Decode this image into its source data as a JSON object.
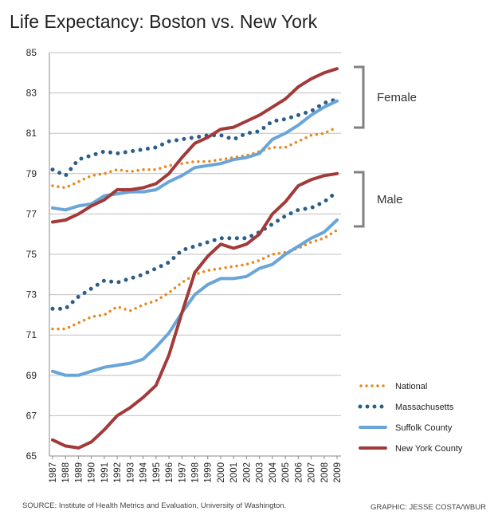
{
  "title": "Life Expectancy: Boston vs. New York",
  "source": "SOURCE: Institute of Health Metrics and Evaluation, University of Washington.",
  "credit": "GRAPHIC: JESSE COSTA/WBUR",
  "colors": {
    "National": "#e68a1f",
    "Massachusetts": "#2c5d8a",
    "Suffolk County": "#6aa5d8",
    "New York County": "#a33a3a",
    "grid": "#bfbfbf",
    "bracket": "#808080"
  },
  "chart_data": {
    "type": "line",
    "x": [
      1987,
      1988,
      1989,
      1990,
      1991,
      1992,
      1993,
      1994,
      1995,
      1996,
      1997,
      1998,
      1999,
      2000,
      2001,
      2002,
      2003,
      2004,
      2005,
      2006,
      2007,
      2008,
      2009
    ],
    "ylim": [
      65,
      85
    ],
    "yticks": [
      65,
      67,
      69,
      71,
      73,
      75,
      77,
      79,
      81,
      83,
      85
    ],
    "grid": true,
    "legend_position": "bottom-right",
    "groups": [
      {
        "label": "Female",
        "series": [
          {
            "name": "National",
            "style": "dotted",
            "values": [
              78.4,
              78.3,
              78.6,
              78.9,
              79.0,
              79.2,
              79.1,
              79.2,
              79.2,
              79.4,
              79.5,
              79.6,
              79.6,
              79.7,
              79.8,
              79.9,
              80.1,
              80.3,
              80.3,
              80.6,
              80.9,
              81.0,
              81.3
            ]
          },
          {
            "name": "Massachusetts",
            "style": "dotted",
            "values": [
              79.2,
              78.9,
              79.7,
              79.9,
              80.1,
              80.0,
              80.1,
              80.2,
              80.3,
              80.6,
              80.7,
              80.8,
              80.9,
              80.9,
              80.7,
              81.0,
              81.1,
              81.6,
              81.7,
              81.9,
              82.1,
              82.5,
              82.7
            ]
          },
          {
            "name": "Suffolk County",
            "style": "solid",
            "values": [
              77.3,
              77.2,
              77.4,
              77.5,
              77.9,
              78.0,
              78.1,
              78.1,
              78.2,
              78.6,
              78.9,
              79.3,
              79.4,
              79.5,
              79.7,
              79.8,
              80.0,
              80.7,
              81.0,
              81.4,
              81.9,
              82.3,
              82.6
            ]
          },
          {
            "name": "New York County",
            "style": "solid",
            "values": [
              76.6,
              76.7,
              77.0,
              77.4,
              77.7,
              78.2,
              78.2,
              78.3,
              78.5,
              79.0,
              79.8,
              80.5,
              80.8,
              81.2,
              81.3,
              81.6,
              81.9,
              82.3,
              82.7,
              83.3,
              83.7,
              84.0,
              84.2
            ]
          }
        ]
      },
      {
        "label": "Male",
        "series": [
          {
            "name": "National",
            "style": "dotted",
            "values": [
              71.3,
              71.3,
              71.6,
              71.9,
              72.0,
              72.4,
              72.2,
              72.5,
              72.7,
              73.1,
              73.6,
              74.0,
              74.2,
              74.3,
              74.4,
              74.5,
              74.7,
              75.0,
              75.1,
              75.3,
              75.6,
              75.8,
              76.2
            ]
          },
          {
            "name": "Massachusetts",
            "style": "dotted",
            "values": [
              72.3,
              72.3,
              72.9,
              73.3,
              73.7,
              73.6,
              73.8,
              74.0,
              74.3,
              74.6,
              75.2,
              75.4,
              75.6,
              75.8,
              75.8,
              75.8,
              76.1,
              76.5,
              76.9,
              77.2,
              77.3,
              77.6,
              78.1
            ]
          },
          {
            "name": "Suffolk County",
            "style": "solid",
            "values": [
              69.2,
              69.0,
              69.0,
              69.2,
              69.4,
              69.5,
              69.6,
              69.8,
              70.4,
              71.1,
              72.1,
              73.0,
              73.5,
              73.8,
              73.8,
              73.9,
              74.3,
              74.5,
              75.0,
              75.4,
              75.8,
              76.1,
              76.7
            ]
          },
          {
            "name": "New York County",
            "style": "solid",
            "values": [
              65.8,
              65.5,
              65.4,
              65.7,
              66.3,
              67.0,
              67.4,
              67.9,
              68.5,
              70.0,
              72.1,
              74.1,
              74.9,
              75.5,
              75.3,
              75.5,
              76.0,
              77.0,
              77.6,
              78.4,
              78.7,
              78.9,
              79.0
            ]
          }
        ]
      }
    ],
    "legend": [
      "National",
      "Massachusetts",
      "Suffolk County",
      "New York County"
    ]
  }
}
